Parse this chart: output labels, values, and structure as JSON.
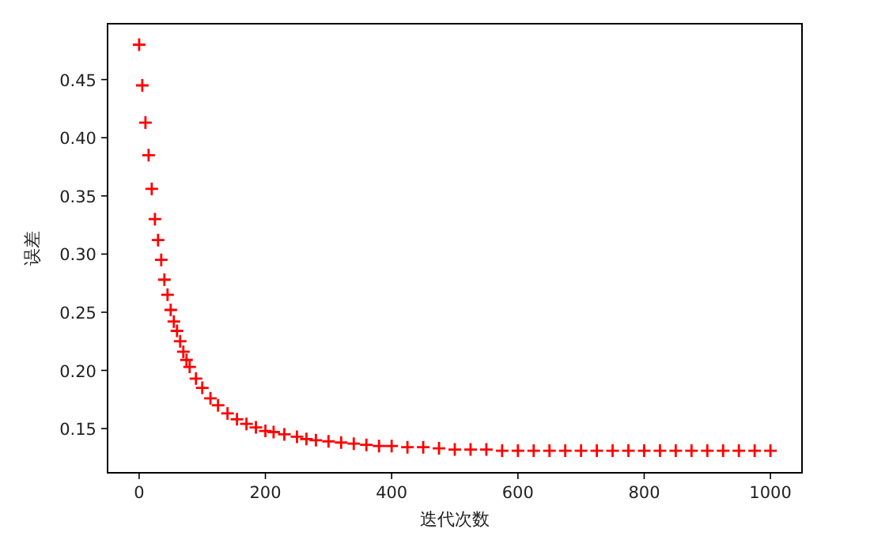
{
  "chart_data": {
    "type": "scatter",
    "xlabel": "迭代次数",
    "ylabel": "误差",
    "x": [
      0,
      5,
      10,
      15,
      20,
      25,
      30,
      35,
      40,
      45,
      50,
      55,
      60,
      65,
      70,
      75,
      80,
      90,
      100,
      113,
      125,
      140,
      155,
      170,
      185,
      200,
      213,
      230,
      250,
      265,
      280,
      300,
      320,
      340,
      360,
      380,
      400,
      425,
      450,
      475,
      500,
      525,
      550,
      575,
      600,
      625,
      650,
      675,
      700,
      725,
      750,
      775,
      800,
      825,
      850,
      875,
      900,
      925,
      950,
      975,
      1000
    ],
    "series": [
      {
        "color": "#ff0000",
        "values": [
          0.48,
          0.445,
          0.413,
          0.385,
          0.356,
          0.33,
          0.312,
          0.295,
          0.278,
          0.265,
          0.252,
          0.242,
          0.234,
          0.225,
          0.216,
          0.209,
          0.203,
          0.193,
          0.185,
          0.176,
          0.17,
          0.163,
          0.158,
          0.154,
          0.151,
          0.148,
          0.147,
          0.145,
          0.143,
          0.141,
          0.14,
          0.139,
          0.138,
          0.137,
          0.136,
          0.135,
          0.135,
          0.134,
          0.134,
          0.133,
          0.132,
          0.132,
          0.132,
          0.131,
          0.131,
          0.131,
          0.131,
          0.131,
          0.131,
          0.131,
          0.131,
          0.131,
          0.131,
          0.131,
          0.131,
          0.131,
          0.131,
          0.131,
          0.131,
          0.131,
          0.131
        ]
      }
    ],
    "xlim": [
      -50,
      1050
    ],
    "ylim": [
      0.112,
      0.498
    ],
    "xticks": [
      0,
      200,
      400,
      600,
      800,
      1000
    ],
    "yticks": [
      0.15,
      {
        "value": 0.2,
        "label": "0.20"
      },
      0.25,
      {
        "value": 0.3,
        "label": "0.30"
      },
      0.35,
      {
        "value": 0.4,
        "label": "0.40"
      },
      0.45
    ],
    "marker": "cross"
  }
}
